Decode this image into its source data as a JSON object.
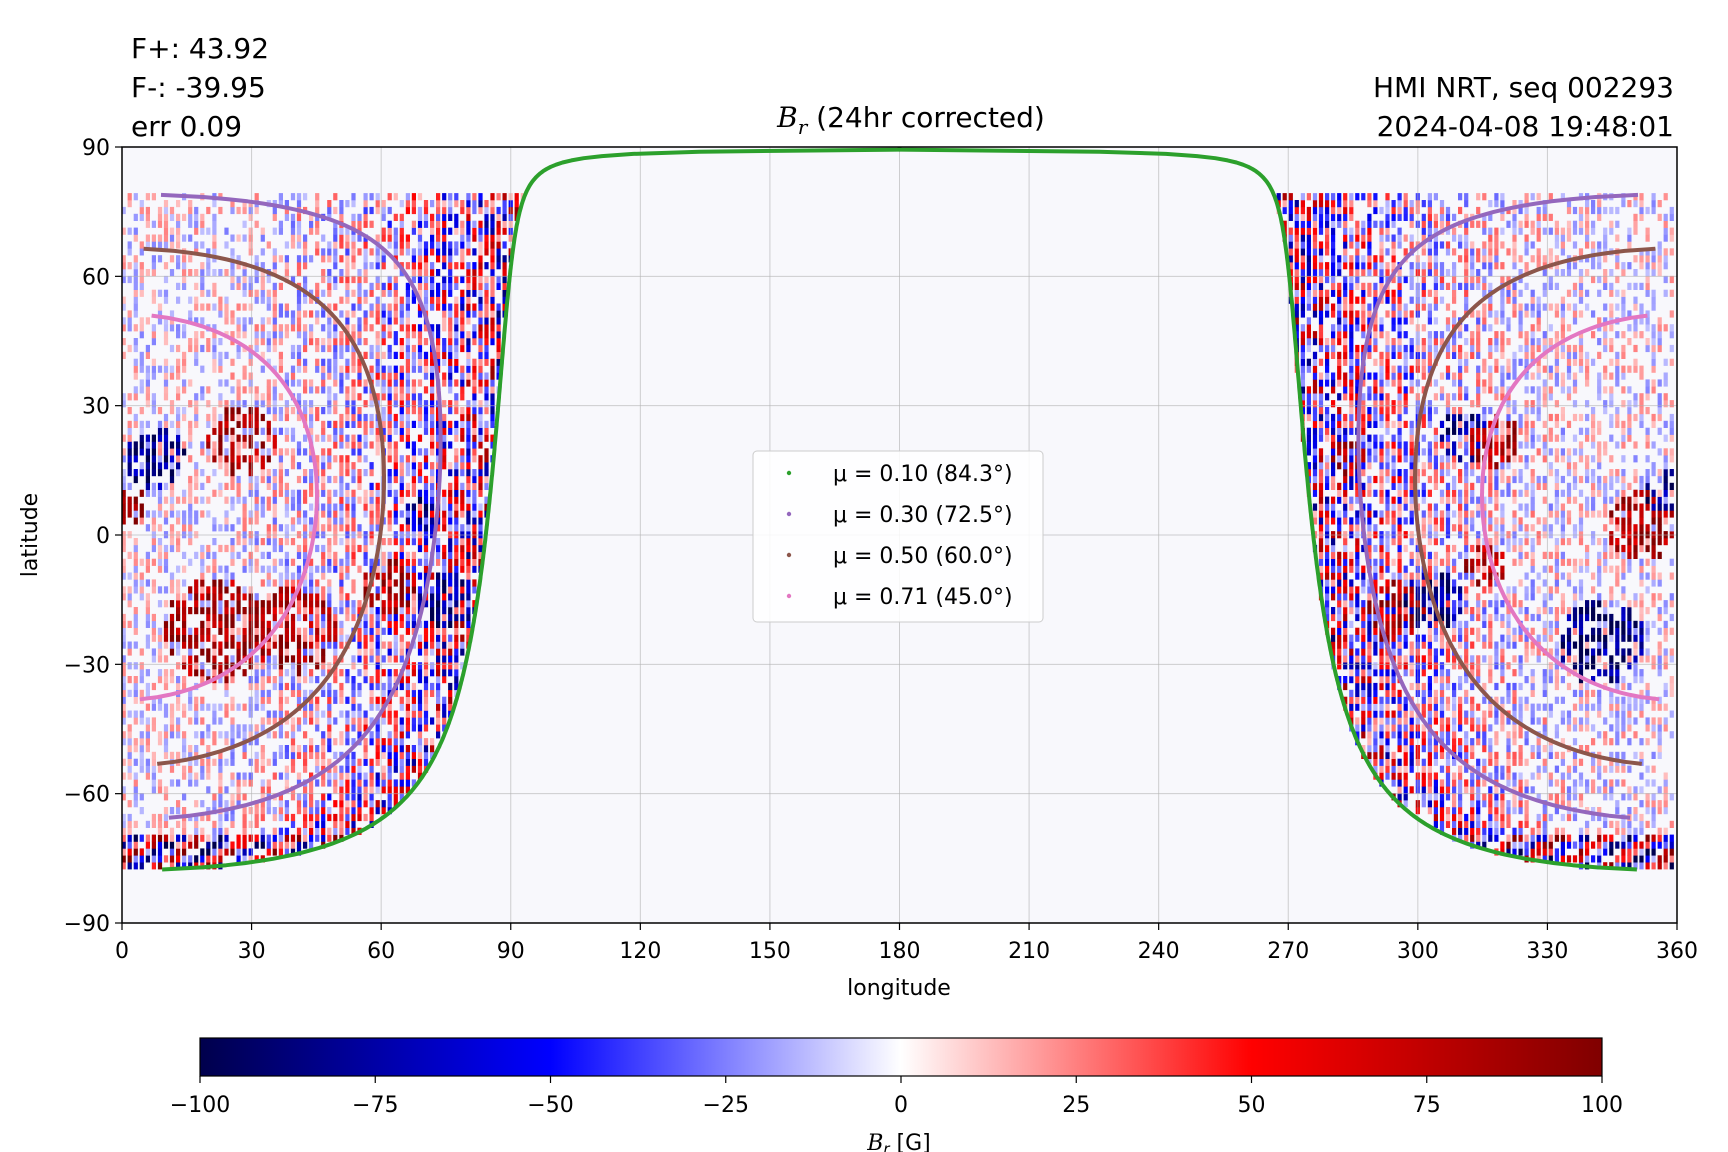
{
  "header": {
    "flux_pos": "F+: 43.92",
    "flux_neg": "F-: -39.95",
    "err": "err 0.09",
    "source": "HMI NRT, seq 002293",
    "timestamp": "2024-04-08 19:48:01",
    "title_symbol": "B",
    "title_subscript": "r",
    "title_text": " (24hr corrected)"
  },
  "chart_data": {
    "type": "heatmap",
    "title": "B_r (24hr corrected)",
    "xlabel": "longitude",
    "ylabel": "latitude",
    "xlim": [
      0,
      360
    ],
    "ylim": [
      -90,
      90
    ],
    "xticks": [
      0,
      30,
      60,
      90,
      120,
      150,
      180,
      210,
      240,
      270,
      300,
      330,
      360
    ],
    "yticks": [
      -90,
      -60,
      -30,
      0,
      30,
      60,
      90
    ],
    "grid": true,
    "observed_region": {
      "description_hidden": true,
      "left_edge_longitude_max": 97,
      "right_edge_longitude_min": 273,
      "polar_edge_latitude": 78,
      "empty_background": "#f8f8fc"
    },
    "mu_contours": [
      {
        "label": "μ = 0.10 (84.3°)",
        "mu": 0.1,
        "angle_deg": 84.3,
        "color": "#2ca02c"
      },
      {
        "label": "μ = 0.30 (72.5°)",
        "mu": 0.3,
        "angle_deg": 72.5,
        "color": "#9467bd"
      },
      {
        "label": "μ = 0.50 (60.0°)",
        "mu": 0.5,
        "angle_deg": 60.0,
        "color": "#8c564b"
      },
      {
        "label": "μ = 0.71 (45.0°)",
        "mu": 0.71,
        "angle_deg": 45.0,
        "color": "#e377c2"
      }
    ],
    "legend_position": "center",
    "colorbar": {
      "label_symbol": "B",
      "label_subscript": "r",
      "label_unit": " [G]",
      "min": -100,
      "max": 100,
      "ticks": [
        -100,
        -75,
        -50,
        -25,
        0,
        25,
        50,
        75,
        100
      ],
      "colormap": "seismic",
      "stops": [
        "#00004c",
        "#0000ff",
        "#ffffff",
        "#ff0000",
        "#800000"
      ]
    }
  }
}
